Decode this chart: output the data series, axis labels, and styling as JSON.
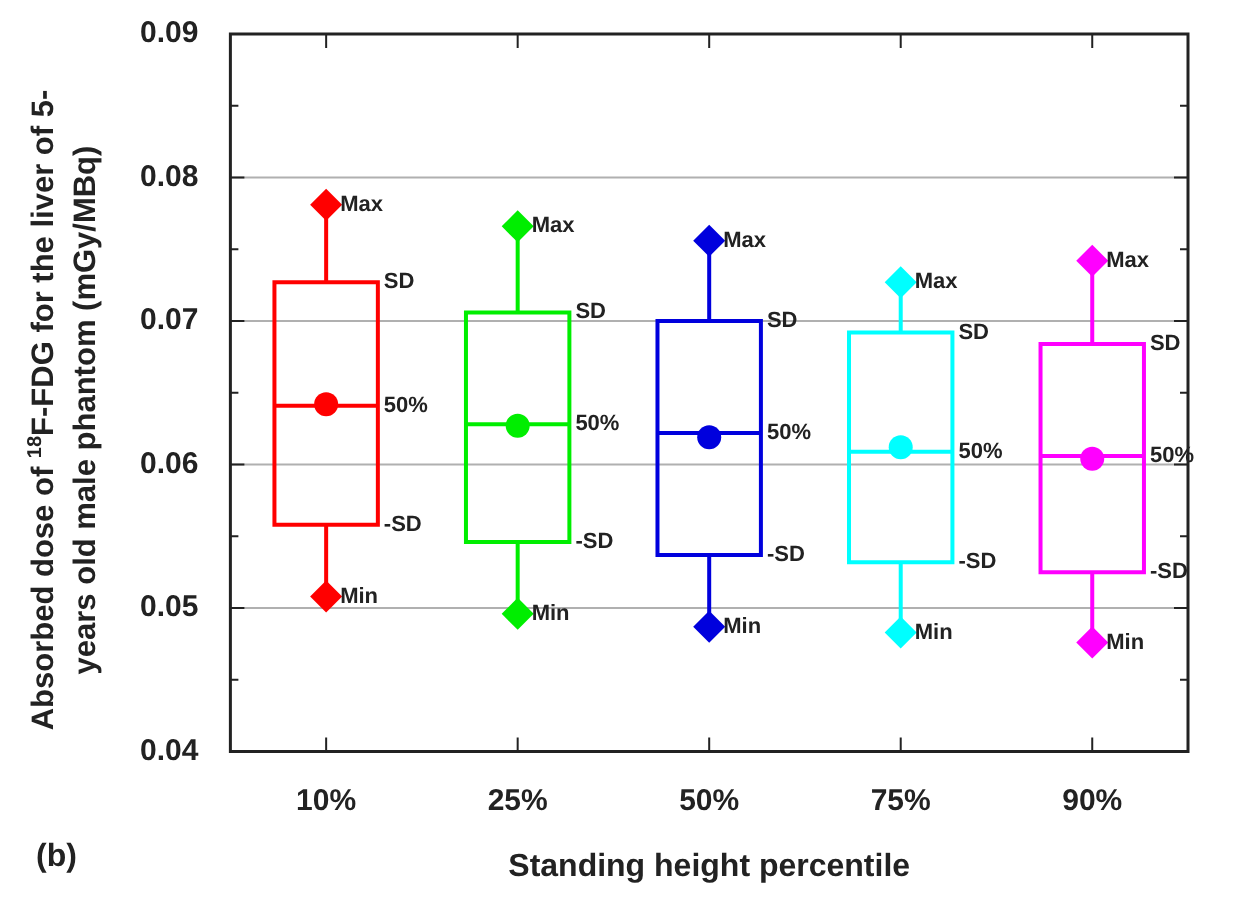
{
  "chart_data": {
    "type": "box",
    "categories": [
      "10%",
      "25%",
      "50%",
      "75%",
      "90%"
    ],
    "colors": [
      "#ff0000",
      "#00ee00",
      "#0000dd",
      "#00ffff",
      "#ff00ff"
    ],
    "boxes": [
      {
        "low": 0.0508,
        "q1": 0.0558,
        "median": 0.0641,
        "q3": 0.0727,
        "high": 0.0781,
        "mean": 0.0642
      },
      {
        "low": 0.0496,
        "q1": 0.0546,
        "median": 0.0628,
        "q3": 0.0706,
        "high": 0.0766,
        "mean": 0.0627
      },
      {
        "low": 0.0487,
        "q1": 0.0537,
        "median": 0.0622,
        "q3": 0.07,
        "high": 0.0756,
        "mean": 0.0619
      },
      {
        "low": 0.0483,
        "q1": 0.0532,
        "median": 0.0609,
        "q3": 0.0692,
        "high": 0.0727,
        "mean": 0.0612
      },
      {
        "low": 0.0476,
        "q1": 0.0525,
        "median": 0.0606,
        "q3": 0.0684,
        "high": 0.0742,
        "mean": 0.0604
      }
    ],
    "ylim": [
      0.04,
      0.09
    ],
    "yticks": [
      0.04,
      {
        "value": 0.045,
        "label": null
      },
      0.05,
      {
        "value": 0.055,
        "label": null
      },
      0.06,
      {
        "value": 0.065,
        "label": null
      },
      0.07,
      {
        "value": 0.075,
        "label": null
      },
      0.08,
      {
        "value": 0.085,
        "label": null
      },
      0.09
    ],
    "xlabel": "Standing height percentile",
    "ylabel": "Absorbed dose of $^{18}$F-FDG for the liver of 5-years old male phantom (mGy/MBq)",
    "grid": "y",
    "marker": "diamond",
    "legend": false,
    "annotations": [
      "(b)",
      {
        "text": "Max",
        "x": "10%",
        "y": 0.0781
      },
      {
        "text": "SD",
        "x": "10%",
        "y": 0.0727
      },
      {
        "text": "50%",
        "x": "10%",
        "y": 0.0641
      },
      {
        "text": "-SD",
        "x": "10%",
        "y": 0.0558
      },
      {
        "text": "Min",
        "x": "10%",
        "y": 0.0508
      },
      {
        "text": "Max",
        "x": "25%",
        "y": 0.0766
      },
      {
        "text": "SD",
        "x": "25%",
        "y": 0.0706
      },
      {
        "text": "50%",
        "x": "25%",
        "y": 0.0628
      },
      {
        "text": "-SD",
        "x": "25%",
        "y": 0.0546
      },
      {
        "text": "Min",
        "x": "25%",
        "y": 0.0496
      },
      {
        "text": "Max",
        "x": "50%",
        "y": 0.0756
      },
      {
        "text": "SD",
        "x": "50%",
        "y": 0.07
      },
      {
        "text": "50%",
        "x": "50%",
        "y": 0.0622
      },
      {
        "text": "-SD",
        "x": "50%",
        "y": 0.0537
      },
      {
        "text": "Min",
        "x": "50%",
        "y": 0.0487
      },
      {
        "text": "Max",
        "x": "75%",
        "y": 0.0727
      },
      {
        "text": "SD",
        "x": "75%",
        "y": 0.0692
      },
      {
        "text": "50%",
        "x": "75%",
        "y": 0.0609
      },
      {
        "text": "-SD",
        "x": "75%",
        "y": 0.0532
      },
      {
        "text": "Min",
        "x": "75%",
        "y": 0.0483
      },
      {
        "text": "Max",
        "x": "90%",
        "y": 0.0742
      },
      {
        "text": "SD",
        "x": "90%",
        "y": 0.0684
      },
      {
        "text": "50%",
        "x": "90%",
        "y": 0.0606
      },
      {
        "text": "-SD",
        "x": "90%",
        "y": 0.0525
      },
      {
        "text": "Min",
        "x": "90%",
        "y": 0.0476
      }
    ]
  }
}
